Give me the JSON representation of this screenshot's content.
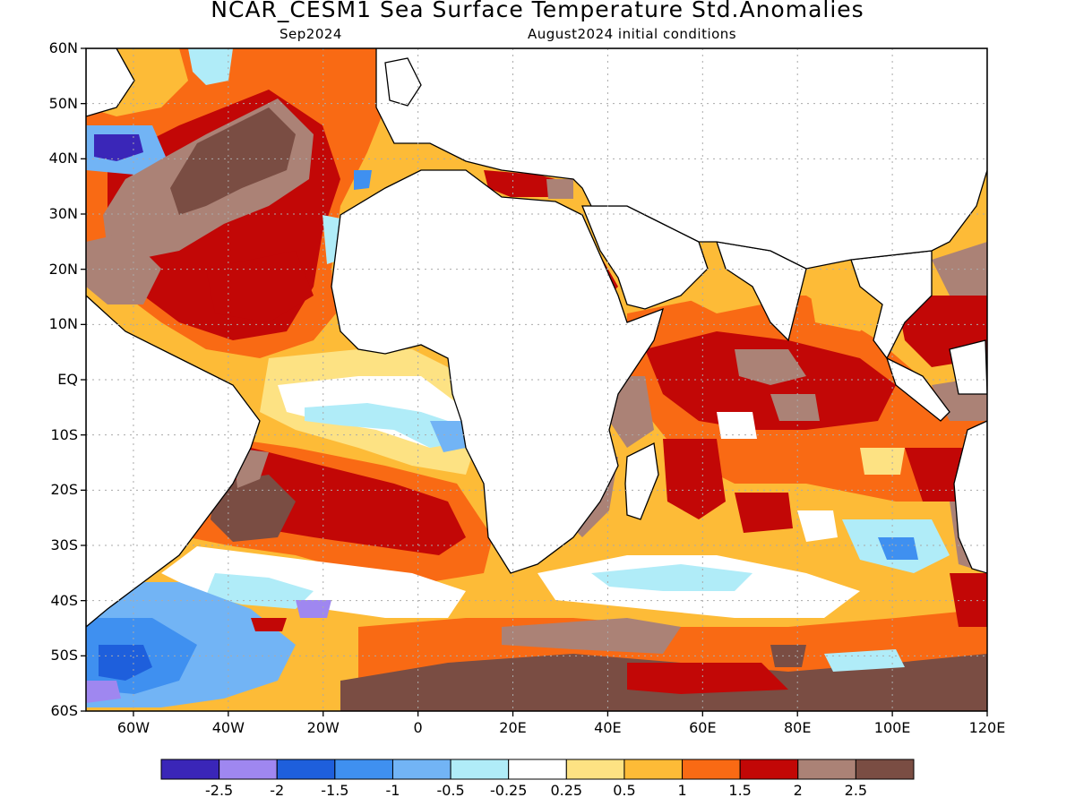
{
  "title": "NCAR_CESM1 Sea Surface Temperature Std.Anomalies",
  "forecast_month": "Sep2024",
  "initial_conditions": "August2024 initial conditions",
  "lat_labels": [
    "60N",
    "50N",
    "40N",
    "30N",
    "20N",
    "10N",
    "EQ",
    "10S",
    "20S",
    "30S",
    "40S",
    "50S",
    "60S"
  ],
  "lon_labels": [
    "60W",
    "40W",
    "20W",
    "0",
    "20E",
    "40E",
    "60E",
    "80E",
    "100E",
    "120E"
  ],
  "colorbar": {
    "colors": [
      "#3a26b8",
      "#9f87f0",
      "#1e5fdc",
      "#3f90f0",
      "#72b4f5",
      "#b0ecf8",
      "#ffffff",
      "#fde283",
      "#fdbb37",
      "#f96a14",
      "#c20706",
      "#ab8276",
      "#7a4d43"
    ],
    "labels": [
      "-2.5",
      "-2",
      "-1.5",
      "-1",
      "-0.5",
      "-0.25",
      "0.25",
      "0.5",
      "1",
      "1.5",
      "2",
      "2.5"
    ]
  },
  "map": {
    "lon_range": [
      -70,
      120
    ],
    "lat_range": [
      -60,
      60
    ],
    "gridlines": "dotted"
  }
}
